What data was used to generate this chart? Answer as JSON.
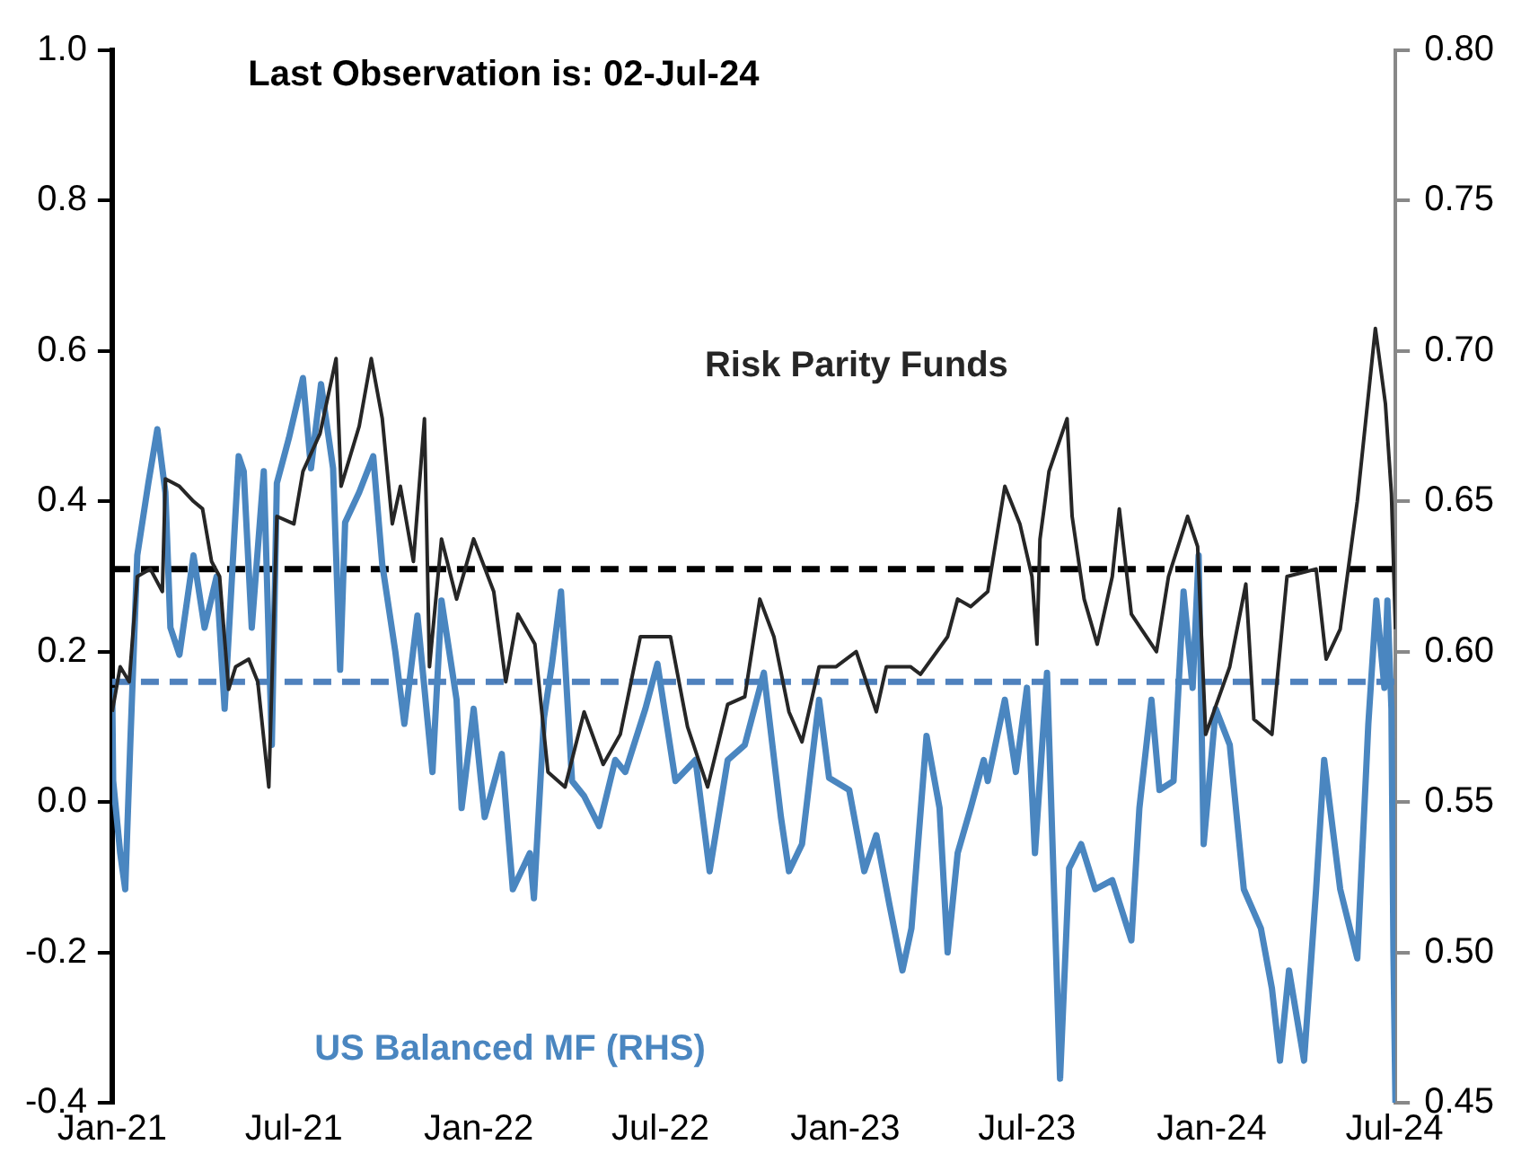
{
  "chart_data": {
    "type": "line",
    "title": "Last Observation is: 02-Jul-24",
    "xlim": [
      "2021-01-01",
      "2024-07-02"
    ],
    "xticks": [
      {
        "value": "2021-01-01",
        "label": "Jan-21"
      },
      {
        "value": "2021-07-01",
        "label": "Jul-21"
      },
      {
        "value": "2022-01-01",
        "label": "Jan-22"
      },
      {
        "value": "2022-07-01",
        "label": "Jul-22"
      },
      {
        "value": "2023-01-01",
        "label": "Jan-23"
      },
      {
        "value": "2023-07-01",
        "label": "Jul-23"
      },
      {
        "value": "2024-01-01",
        "label": "Jan-24"
      },
      {
        "value": "2024-07-01",
        "label": "Jul-24"
      }
    ],
    "ylim": [
      -0.4,
      1.0
    ],
    "yticks": [
      {
        "value": -0.4,
        "label": "-0.4"
      },
      {
        "value": -0.2,
        "label": "-0.2"
      },
      {
        "value": 0,
        "label": "0.0"
      },
      {
        "value": 0.2,
        "label": "0.2"
      },
      {
        "value": 0.4,
        "label": "0.4"
      },
      {
        "value": 0.6,
        "label": "0.6"
      },
      {
        "value": 0.8,
        "label": "0.8"
      },
      {
        "value": 1.0,
        "label": "1.0"
      }
    ],
    "y2lim": [
      0.45,
      0.8
    ],
    "y2ticks": [
      {
        "value": 0.45,
        "label": "0.45"
      },
      {
        "value": 0.5,
        "label": "0.50"
      },
      {
        "value": 0.55,
        "label": "0.55"
      },
      {
        "value": 0.6,
        "label": "0.60"
      },
      {
        "value": 0.65,
        "label": "0.65"
      },
      {
        "value": 0.7,
        "label": "0.70"
      },
      {
        "value": 0.75,
        "label": "0.75"
      },
      {
        "value": 0.8,
        "label": "0.80"
      }
    ],
    "grid": false,
    "marker": "none",
    "line_style": "solid",
    "ref_lines": [
      {
        "axis": "y",
        "value": 0.31,
        "color": "#000000",
        "line_style": "dashed"
      },
      {
        "axis": "y2",
        "value": 0.59,
        "color": "#4f81bd",
        "line_style": "dashed"
      }
    ],
    "series": [
      {
        "name": "Risk Parity Funds",
        "color": "#262626",
        "axis": "y",
        "x": [
          "2021-01-01",
          "2021-01-09",
          "2021-01-18",
          "2021-01-26",
          "2021-02-08",
          "2021-02-20",
          "2021-02-23",
          "2021-03-09",
          "2021-03-23",
          "2021-04-01",
          "2021-04-10",
          "2021-04-18",
          "2021-04-27",
          "2021-05-04",
          "2021-05-17",
          "2021-05-26",
          "2021-06-06",
          "2021-06-14",
          "2021-07-01",
          "2021-07-10",
          "2021-07-27",
          "2021-08-12",
          "2021-08-17",
          "2021-09-04",
          "2021-09-16",
          "2021-09-27",
          "2021-10-07",
          "2021-10-15",
          "2021-10-28",
          "2021-11-08",
          "2021-11-13",
          "2021-11-25",
          "2021-12-10",
          "2021-12-27",
          "2022-01-16",
          "2022-01-28",
          "2022-02-09",
          "2022-02-26",
          "2022-03-11",
          "2022-03-28",
          "2022-04-16",
          "2022-05-05",
          "2022-05-22",
          "2022-06-11",
          "2022-07-11",
          "2022-07-28",
          "2022-08-17",
          "2022-09-06",
          "2022-09-23",
          "2022-10-08",
          "2022-10-22",
          "2022-11-06",
          "2022-11-19",
          "2022-12-06",
          "2022-12-23",
          "2023-01-12",
          "2023-02-01",
          "2023-02-11",
          "2023-03-07",
          "2023-03-17",
          "2023-04-13",
          "2023-04-23",
          "2023-05-06",
          "2023-05-23",
          "2023-06-09",
          "2023-06-24",
          "2023-07-06",
          "2023-07-11",
          "2023-07-14",
          "2023-07-23",
          "2023-08-10",
          "2023-08-15",
          "2023-08-27",
          "2023-09-09",
          "2023-09-24",
          "2023-10-01",
          "2023-10-13",
          "2023-11-07",
          "2023-11-19",
          "2023-12-08",
          "2023-12-18",
          "2023-12-26",
          "2024-01-19",
          "2024-02-04",
          "2024-02-12",
          "2024-03-01",
          "2024-03-16",
          "2024-04-14",
          "2024-04-24",
          "2024-05-08",
          "2024-05-25",
          "2024-06-12",
          "2024-06-22",
          "2024-06-28",
          "2024-07-02"
        ],
        "values": [
          0.12,
          0.18,
          0.16,
          0.3,
          0.31,
          0.28,
          0.43,
          0.42,
          0.4,
          0.39,
          0.32,
          0.3,
          0.15,
          0.18,
          0.19,
          0.16,
          0.02,
          0.38,
          0.37,
          0.44,
          0.49,
          0.59,
          0.42,
          0.5,
          0.59,
          0.51,
          0.37,
          0.42,
          0.32,
          0.51,
          0.18,
          0.35,
          0.27,
          0.35,
          0.28,
          0.16,
          0.25,
          0.21,
          0.04,
          0.02,
          0.12,
          0.05,
          0.09,
          0.22,
          0.22,
          0.1,
          0.02,
          0.13,
          0.14,
          0.27,
          0.22,
          0.12,
          0.08,
          0.18,
          0.18,
          0.2,
          0.12,
          0.18,
          0.18,
          0.17,
          0.22,
          0.27,
          0.26,
          0.28,
          0.42,
          0.37,
          0.3,
          0.21,
          0.35,
          0.44,
          0.51,
          0.38,
          0.27,
          0.21,
          0.3,
          0.39,
          0.25,
          0.2,
          0.3,
          0.38,
          0.34,
          0.09,
          0.18,
          0.29,
          0.11,
          0.09,
          0.3,
          0.31,
          0.19,
          0.23,
          0.4,
          0.63,
          0.53,
          0.41,
          0.23
        ]
      },
      {
        "name": "US Balanced MF (RHS)",
        "color": "#4a86c0",
        "axis": "y2",
        "x": [
          "2021-01-01",
          "2021-01-02",
          "2021-01-09",
          "2021-01-14",
          "2021-01-19",
          "2021-01-26",
          "2021-02-06",
          "2021-02-15",
          "2021-02-23",
          "2021-02-28",
          "2021-03-09",
          "2021-03-23",
          "2021-04-03",
          "2021-04-15",
          "2021-04-23",
          "2021-05-07",
          "2021-05-12",
          "2021-05-20",
          "2021-06-01",
          "2021-06-09",
          "2021-06-14",
          "2021-06-26",
          "2021-07-10",
          "2021-07-18",
          "2021-07-28",
          "2021-08-09",
          "2021-08-16",
          "2021-08-21",
          "2021-09-04",
          "2021-09-18",
          "2021-09-27",
          "2021-10-10",
          "2021-10-19",
          "2021-11-01",
          "2021-11-16",
          "2021-11-25",
          "2021-12-10",
          "2021-12-15",
          "2021-12-27",
          "2022-01-07",
          "2022-01-24",
          "2022-02-04",
          "2022-02-21",
          "2022-02-25",
          "2022-03-07",
          "2022-03-15",
          "2022-03-24",
          "2022-04-04",
          "2022-04-16",
          "2022-05-01",
          "2022-05-17",
          "2022-05-27",
          "2022-06-16",
          "2022-06-28",
          "2022-07-16",
          "2022-08-05",
          "2022-08-19",
          "2022-09-06",
          "2022-09-23",
          "2022-10-12",
          "2022-10-29",
          "2022-11-06",
          "2022-11-19",
          "2022-12-06",
          "2022-12-16",
          "2023-01-05",
          "2023-01-20",
          "2023-02-01",
          "2023-02-14",
          "2023-02-27",
          "2023-03-08",
          "2023-03-23",
          "2023-04-05",
          "2023-04-13",
          "2023-04-23",
          "2023-05-06",
          "2023-05-19",
          "2023-05-23",
          "2023-06-09",
          "2023-06-20",
          "2023-07-01",
          "2023-07-09",
          "2023-07-21",
          "2023-08-03",
          "2023-08-12",
          "2023-08-24",
          "2023-09-07",
          "2023-09-24",
          "2023-10-13",
          "2023-10-21",
          "2023-11-02",
          "2023-11-10",
          "2023-11-24",
          "2023-12-04",
          "2023-12-13",
          "2023-12-19",
          "2023-12-24",
          "2024-01-05",
          "2024-01-19",
          "2024-02-02",
          "2024-02-19",
          "2024-03-01",
          "2024-03-09",
          "2024-03-18",
          "2024-04-02",
          "2024-04-14",
          "2024-04-22",
          "2024-05-08",
          "2024-05-25",
          "2024-06-05",
          "2024-06-13",
          "2024-06-21",
          "2024-06-24",
          "2024-06-28",
          "2024-06-30",
          "2024-07-02"
        ],
        "values": [
          0.588,
          0.557,
          0.533,
          0.521,
          0.569,
          0.632,
          0.656,
          0.674,
          0.653,
          0.608,
          0.599,
          0.632,
          0.608,
          0.625,
          0.581,
          0.665,
          0.66,
          0.608,
          0.66,
          0.569,
          0.656,
          0.671,
          0.691,
          0.661,
          0.689,
          0.661,
          0.594,
          0.643,
          0.653,
          0.665,
          0.629,
          0.6,
          0.576,
          0.612,
          0.56,
          0.617,
          0.584,
          0.548,
          0.581,
          0.545,
          0.566,
          0.521,
          0.533,
          0.518,
          0.578,
          0.596,
          0.62,
          0.557,
          0.552,
          0.542,
          0.564,
          0.56,
          0.581,
          0.596,
          0.557,
          0.564,
          0.527,
          0.564,
          0.569,
          0.593,
          0.545,
          0.527,
          0.536,
          0.584,
          0.558,
          0.554,
          0.527,
          0.539,
          0.516,
          0.494,
          0.508,
          0.572,
          0.548,
          0.5,
          0.533,
          0.548,
          0.564,
          0.557,
          0.584,
          0.56,
          0.588,
          0.533,
          0.593,
          0.458,
          0.528,
          0.536,
          0.521,
          0.524,
          0.504,
          0.548,
          0.584,
          0.554,
          0.557,
          0.62,
          0.588,
          0.632,
          0.536,
          0.581,
          0.569,
          0.521,
          0.508,
          0.488,
          0.464,
          0.494,
          0.464,
          0.521,
          0.564,
          0.521,
          0.498,
          0.576,
          0.617,
          0.588,
          0.617,
          0.581,
          0.5,
          0.45
        ]
      }
    ]
  }
}
